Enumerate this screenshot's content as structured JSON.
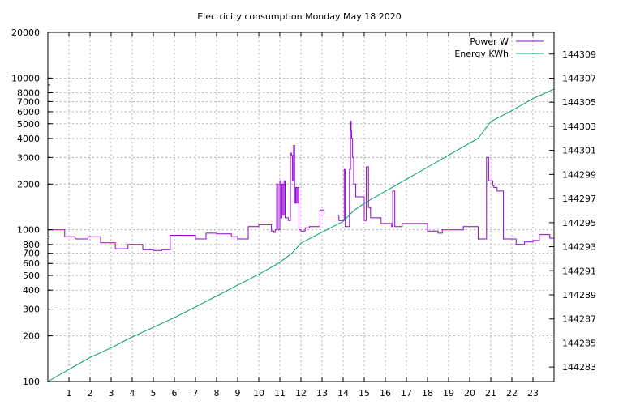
{
  "chart_data": {
    "type": "line",
    "title": "Electricity consumption Monday May 18 2020",
    "xlabel": "",
    "ylabel": "",
    "y2label": "",
    "xlim": [
      0,
      24
    ],
    "ylim": [
      100,
      20000
    ],
    "y_scale": "log",
    "y2lim": [
      144281.8,
      144310.8
    ],
    "grid": true,
    "legend_position": "top-right",
    "x_ticks": [
      "1",
      "2",
      "3",
      "4",
      "5",
      "6",
      "7",
      "8",
      "9",
      "10",
      "11",
      "12",
      "13",
      "14",
      "15",
      "16",
      "17",
      "18",
      "19",
      "20",
      "21",
      "22",
      "23"
    ],
    "y_ticks": [
      "100",
      "200",
      "300",
      "400",
      "500",
      "600",
      "700",
      "800",
      "1000",
      "2000",
      "3000",
      "4000",
      "5000",
      "6000",
      "7000",
      "8000",
      "10000",
      "20000"
    ],
    "y2_ticks": [
      "144283",
      "144285",
      "144287",
      "144289",
      "144291",
      "144293",
      "144295",
      "144297",
      "144299",
      "144301",
      "144303",
      "144305",
      "144307",
      "144309"
    ],
    "series": [
      {
        "name": "Power W",
        "axis": "left",
        "color": "#9400d3",
        "step": true,
        "x": [
          0,
          0.8,
          1.3,
          1.9,
          2.5,
          3.2,
          3.8,
          4.5,
          5.0,
          5.4,
          5.8,
          6.5,
          7.0,
          7.5,
          8.0,
          8.7,
          9.0,
          9.5,
          10.0,
          10.6,
          10.72,
          10.78,
          10.85,
          10.92,
          11.0,
          11.05,
          11.1,
          11.15,
          11.2,
          11.25,
          11.3,
          11.35,
          11.4,
          11.5,
          11.55,
          11.6,
          11.65,
          11.7,
          11.75,
          11.8,
          11.85,
          11.9,
          12.0,
          12.2,
          12.4,
          12.6,
          12.9,
          13.0,
          13.1,
          13.4,
          13.6,
          13.8,
          14.0,
          14.05,
          14.1,
          14.25,
          14.3,
          14.35,
          14.38,
          14.4,
          14.45,
          14.5,
          14.6,
          14.7,
          14.8,
          14.9,
          15.0,
          15.05,
          15.1,
          15.2,
          15.3,
          15.4,
          15.6,
          15.8,
          16.0,
          16.3,
          16.35,
          16.45,
          16.6,
          16.8,
          17.0,
          17.3,
          17.7,
          18.0,
          18.3,
          18.5,
          18.7,
          19.0,
          19.4,
          19.7,
          20.0,
          20.4,
          20.5,
          20.8,
          20.9,
          21.0,
          21.05,
          21.1,
          21.15,
          21.3,
          21.6,
          21.9,
          22.2,
          22.4,
          22.6,
          22.8,
          23.0,
          23.3,
          23.6,
          23.8,
          24.0
        ],
        "values": [
          1000,
          900,
          870,
          900,
          820,
          750,
          800,
          740,
          730,
          740,
          920,
          920,
          870,
          950,
          940,
          900,
          870,
          1050,
          1080,
          980,
          960,
          1000,
          2000,
          1000,
          2100,
          1200,
          2000,
          1250,
          2100,
          1200,
          1200,
          1200,
          1150,
          3200,
          3100,
          2100,
          3600,
          1500,
          1900,
          1500,
          1900,
          1000,
          980,
          1030,
          1050,
          1050,
          1350,
          1350,
          1250,
          1250,
          1250,
          1150,
          1150,
          2500,
          1050,
          1050,
          2500,
          5200,
          4500,
          4000,
          3000,
          2000,
          1650,
          1650,
          1650,
          1650,
          1150,
          1150,
          2600,
          1400,
          1200,
          1200,
          1200,
          1100,
          1100,
          1050,
          1800,
          1050,
          1050,
          1100,
          1100,
          1100,
          1100,
          980,
          980,
          950,
          1000,
          1000,
          1000,
          1050,
          1050,
          870,
          870,
          3000,
          2100,
          2100,
          2100,
          1950,
          1900,
          1800,
          870,
          870,
          800,
          800,
          830,
          830,
          850,
          930,
          930,
          880,
          1100
        ]
      },
      {
        "name": "Energy KWh",
        "axis": "right",
        "color": "#009e73",
        "step": false,
        "x": [
          0,
          1,
          2,
          3,
          4,
          5,
          6,
          7,
          8,
          9,
          10,
          11,
          11.6,
          12,
          13,
          14,
          14.5,
          15,
          16,
          17,
          18,
          19,
          20,
          20.4,
          21,
          22,
          23,
          24
        ],
        "values": [
          144281.8,
          144282.8,
          144283.8,
          144284.6,
          144285.5,
          144286.3,
          144287.1,
          144288.0,
          144288.9,
          144289.8,
          144290.7,
          144291.7,
          144292.5,
          144293.3,
          144294.2,
          144295.1,
          144296.0,
          144296.6,
          144297.6,
          144298.6,
          144299.6,
          144300.6,
          144301.6,
          144302.0,
          144303.4,
          144304.3,
          144305.3,
          144306.1
        ]
      }
    ]
  }
}
